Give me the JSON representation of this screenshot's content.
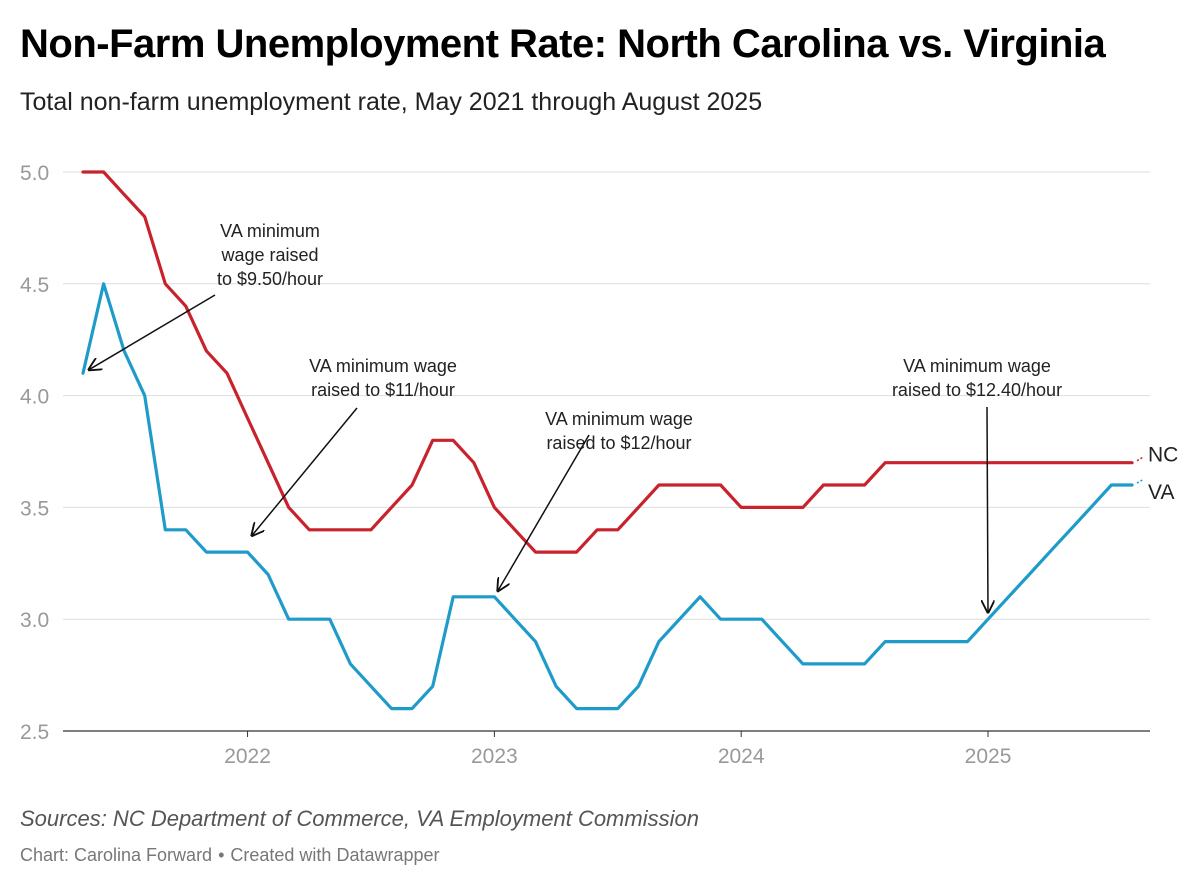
{
  "header": {
    "title": "Non-Farm Unemployment Rate: North Carolina vs. Virginia",
    "subtitle": "Total non-farm unemployment rate, May 2021 through August 2025"
  },
  "footer": {
    "sources": "Sources: NC Department of Commerce, VA Employment Commission",
    "credit_chart": "Chart: Carolina Forward",
    "credit_separator": "•",
    "credit_tool": "Created with Datawrapper"
  },
  "chart_data": {
    "type": "line",
    "title": "Non-Farm Unemployment Rate: North Carolina vs. Virginia",
    "subtitle": "Total non-farm unemployment rate, May 2021 through August 2025",
    "xlabel": "",
    "ylabel": "",
    "ylim": [
      2.5,
      5.0
    ],
    "y_ticks": [
      2.5,
      3.0,
      3.5,
      4.0,
      4.5,
      5.0
    ],
    "y_tick_labels": [
      "2.5",
      "3.0",
      "3.5",
      "4.0",
      "4.5",
      "5.0"
    ],
    "x_ticks": [
      "2022-01",
      "2023-01",
      "2024-01",
      "2025-01"
    ],
    "x_tick_labels": [
      "2022",
      "2023",
      "2024",
      "2025"
    ],
    "x_range": [
      "2021-05",
      "2025-08"
    ],
    "grid": "horizontal",
    "x": [
      "2021-05",
      "2021-06",
      "2021-07",
      "2021-08",
      "2021-09",
      "2021-10",
      "2021-11",
      "2021-12",
      "2022-01",
      "2022-02",
      "2022-03",
      "2022-04",
      "2022-05",
      "2022-06",
      "2022-07",
      "2022-08",
      "2022-09",
      "2022-10",
      "2022-11",
      "2022-12",
      "2023-01",
      "2023-02",
      "2023-03",
      "2023-04",
      "2023-05",
      "2023-06",
      "2023-07",
      "2023-08",
      "2023-09",
      "2023-10",
      "2023-11",
      "2023-12",
      "2024-01",
      "2024-02",
      "2024-03",
      "2024-04",
      "2024-05",
      "2024-06",
      "2024-07",
      "2024-08",
      "2024-09",
      "2024-10",
      "2024-11",
      "2024-12",
      "2025-01",
      "2025-02",
      "2025-03",
      "2025-04",
      "2025-05",
      "2025-06",
      "2025-07",
      "2025-08"
    ],
    "series": [
      {
        "name": "NC",
        "color": "#c8232c",
        "values": [
          5.0,
          5.0,
          4.9,
          4.8,
          4.5,
          4.4,
          4.2,
          4.1,
          3.9,
          3.7,
          3.5,
          3.4,
          3.4,
          3.4,
          3.4,
          3.5,
          3.6,
          3.8,
          3.8,
          3.7,
          3.5,
          3.4,
          3.3,
          3.3,
          3.3,
          3.4,
          3.4,
          3.5,
          3.6,
          3.6,
          3.6,
          3.6,
          3.5,
          3.5,
          3.5,
          3.5,
          3.6,
          3.6,
          3.6,
          3.7,
          3.7,
          3.7,
          3.7,
          3.7,
          3.7,
          3.7,
          3.7,
          3.7,
          3.7,
          3.7,
          3.7,
          3.7
        ]
      },
      {
        "name": "VA",
        "color": "#1f9bc9",
        "values": [
          4.1,
          4.5,
          4.2,
          4.0,
          3.4,
          3.4,
          3.3,
          3.3,
          3.3,
          3.2,
          3.0,
          3.0,
          3.0,
          2.8,
          2.7,
          2.6,
          2.6,
          2.7,
          3.1,
          3.1,
          3.1,
          3.0,
          2.9,
          2.7,
          2.6,
          2.6,
          2.6,
          2.7,
          2.9,
          3.0,
          3.1,
          3.0,
          3.0,
          3.0,
          2.9,
          2.8,
          2.8,
          2.8,
          2.8,
          2.9,
          2.9,
          2.9,
          2.9,
          2.9,
          3.0,
          3.1,
          3.2,
          3.3,
          3.4,
          3.5,
          3.6,
          3.6
        ]
      }
    ],
    "annotations": [
      {
        "lines": [
          "VA minimum",
          "wage raised",
          "to $9.50/hour"
        ],
        "date": "2021-05",
        "value": 4.1
      },
      {
        "lines": [
          "VA minimum wage",
          "raised to $11/hour"
        ],
        "date": "2022-01",
        "value": 3.35
      },
      {
        "lines": [
          "VA minimum wage",
          "raised to $12/hour"
        ],
        "date": "2023-01",
        "value": 3.1
      },
      {
        "lines": [
          "VA minimum wage",
          "raised to $12.40/hour"
        ],
        "date": "2025-01",
        "value": 3.0
      }
    ]
  }
}
